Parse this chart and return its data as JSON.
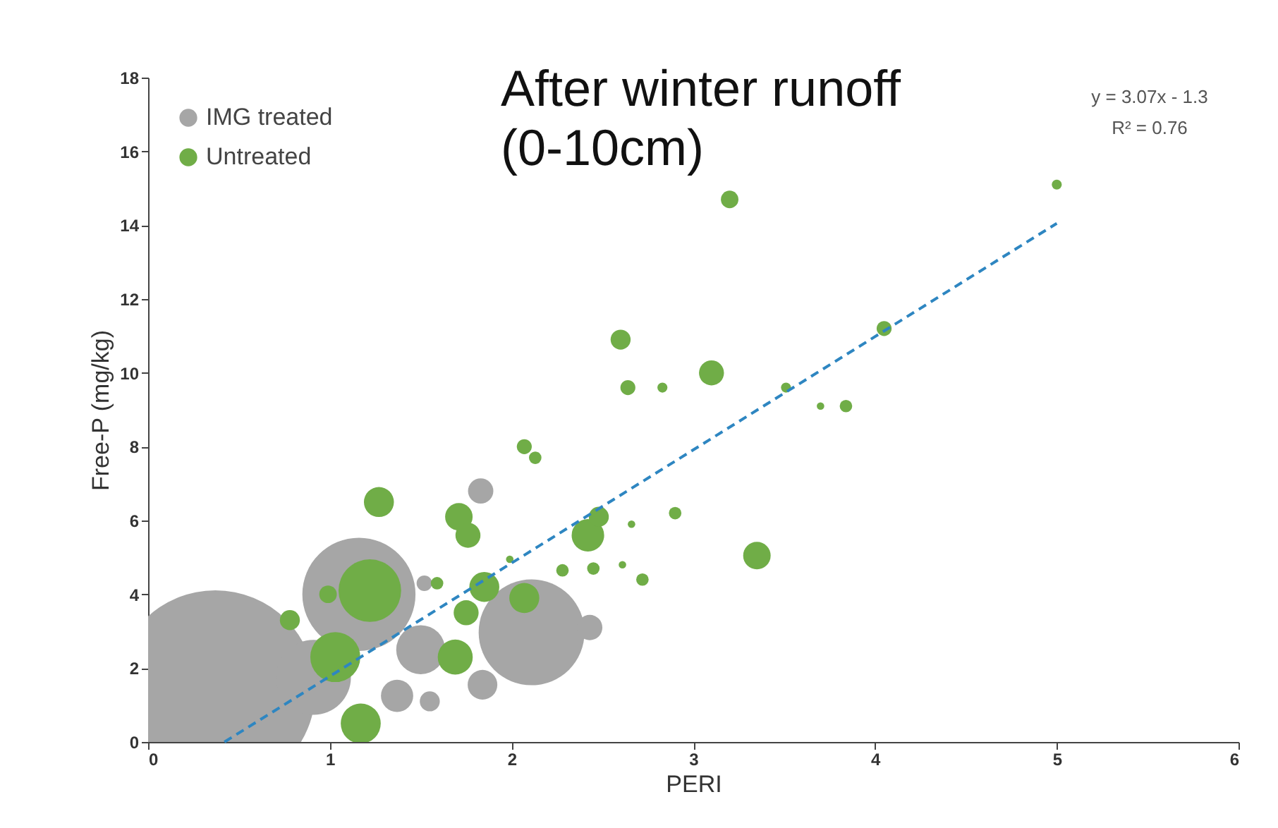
{
  "chart_data": {
    "type": "bubble",
    "title": "After winter runoff\n(0-10cm)",
    "xlabel": "PERI",
    "ylabel": "Free-P (mg/kg)",
    "annotations": [
      "y = 3.07x - 1.3",
      "R² = 0.76"
    ],
    "xlim": [
      0,
      6
    ],
    "xticks": [
      0,
      1,
      2,
      3,
      4,
      5,
      6
    ],
    "ylim": [
      0,
      18
    ],
    "yticks": [
      0,
      2,
      4,
      6,
      8,
      10,
      12,
      14,
      16,
      18
    ],
    "legend": "top left",
    "grid": false,
    "series": [
      {
        "name": "IMG treated",
        "color": "#a6a6a6",
        "x": [
          0.37,
          2.11,
          1.16,
          0.91,
          1.5,
          2.43,
          1.83,
          1.37,
          1.55,
          1.84,
          1.52
        ],
        "values": [
          1.4,
          2.97,
          4.0,
          1.75,
          2.5,
          3.1,
          6.8,
          1.25,
          1.1,
          1.55,
          4.3
        ],
        "sizes": [
          1,
          0.28,
          0.32,
          0.14,
          0.06,
          0.016,
          0.016,
          0.026,
          0.01,
          0.022,
          0.006
        ]
      },
      {
        "name": "Untreated",
        "color": "#70ad47",
        "x": [
          1.17,
          1.03,
          1.22,
          0.78,
          1.27,
          0.99,
          1.69,
          1.71,
          1.76,
          1.75,
          1.85,
          2.07,
          1.59,
          1.99,
          2.42,
          2.48,
          2.28,
          2.45,
          2.61,
          2.72,
          2.9,
          2.66,
          2.07,
          2.13,
          2.6,
          2.64,
          2.83,
          3.1,
          3.35,
          3.2,
          5.0,
          3.51,
          3.7,
          3.84,
          4.05
        ],
        "values": [
          0.5,
          2.3,
          4.1,
          3.3,
          6.5,
          4.0,
          2.3,
          6.1,
          5.6,
          3.5,
          4.2,
          3.9,
          4.3,
          4.95,
          5.6,
          6.1,
          4.65,
          4.7,
          4.8,
          4.4,
          6.2,
          5.9,
          8.0,
          7.7,
          10.9,
          9.6,
          9.6,
          10.0,
          5.05,
          14.7,
          15.1,
          9.6,
          9.1,
          9.1,
          11.2
        ],
        "sizes": [
          0.04,
          0.0625,
          0.098,
          0.01,
          0.0225,
          0.0077,
          0.0306,
          0.0189,
          0.0156,
          0.0156,
          0.0225,
          0.0225,
          0.0039,
          0.0014,
          0.0264,
          0.01,
          0.0039,
          0.0039,
          0.0014,
          0.0039,
          0.0039,
          0.0014,
          0.0056,
          0.0039,
          0.01,
          0.0056,
          0.0025,
          0.0156,
          0.0189,
          0.0077,
          0.0025,
          0.0025,
          0.0014,
          0.0039,
          0.0056
        ]
      },
      {
        "type": "line",
        "color": "#2e86c1",
        "line_style": "dashed",
        "x": [
          0.42,
          5.0
        ],
        "values": [
          0,
          14.05
        ]
      }
    ]
  }
}
